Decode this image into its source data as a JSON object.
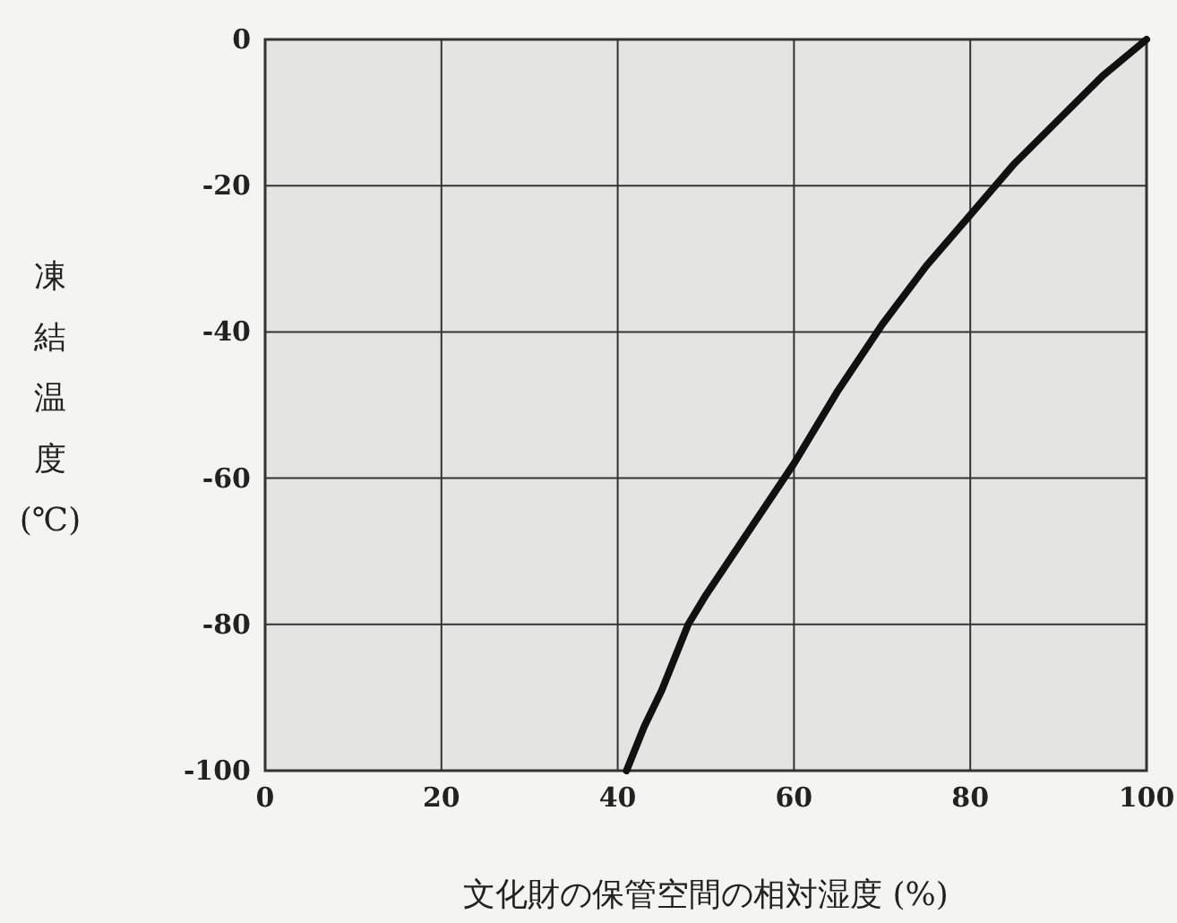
{
  "chart_data": {
    "type": "line",
    "xlabel": "文化財の保管空間の相対湿度 (%)",
    "ylabel": "凍結温度(℃)",
    "x": [
      41,
      43,
      45,
      48,
      50,
      55,
      60,
      65,
      70,
      75,
      80,
      85,
      90,
      95,
      100
    ],
    "series": [
      {
        "color": "#111111",
        "values": [
          -100,
          -94,
          -89,
          -80,
          -76,
          -67,
          -58,
          -48,
          -39,
          -31,
          -24,
          -17,
          -11,
          -5,
          0
        ]
      }
    ],
    "xlim": [
      0,
      100
    ],
    "ylim": [
      -100,
      0
    ],
    "xticks": [
      0,
      20,
      40,
      60,
      80,
      100
    ],
    "yticks": [
      -100,
      -80,
      -60,
      -40,
      -20,
      0
    ],
    "grid": true,
    "marker": "none",
    "line_style": "solid"
  }
}
